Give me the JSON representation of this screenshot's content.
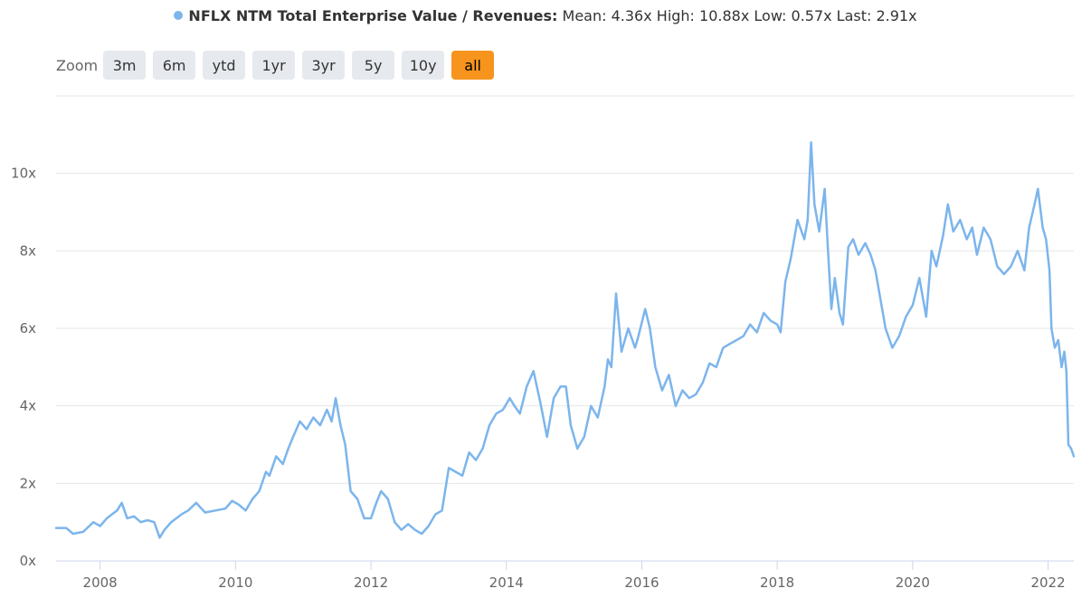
{
  "legend": {
    "series_name": "NFLX NTM Total Enterprise Value / Revenues:",
    "stats": "Mean: 4.36x High: 10.88x Low: 0.57x Last: 2.91x",
    "color": "#7cb5ec"
  },
  "zoom": {
    "label": "Zoom",
    "buttons": [
      "3m",
      "6m",
      "ytd",
      "1yr",
      "3yr",
      "5y",
      "10y",
      "all"
    ],
    "active": "all",
    "active_color": "#f7941d"
  },
  "chart_data": {
    "type": "line",
    "title": "NFLX NTM Total Enterprise Value / Revenues",
    "xlabel": "",
    "ylabel": "",
    "xlim": [
      2007.35,
      2022.38
    ],
    "ylim": [
      0,
      12
    ],
    "grid": true,
    "y_ticks": [
      0,
      2,
      4,
      6,
      8,
      10
    ],
    "y_tick_labels": [
      "0x",
      "2x",
      "4x",
      "6x",
      "8x",
      "10x"
    ],
    "x_ticks": [
      2008,
      2010,
      2012,
      2014,
      2016,
      2018,
      2020,
      2022
    ],
    "x_tick_labels": [
      "2008",
      "2010",
      "2012",
      "2014",
      "2016",
      "2018",
      "2020",
      "2022"
    ],
    "series": [
      {
        "name": "NFLX NTM Total Enterprise Value / Revenues",
        "color": "#7cb5ec",
        "x": [
          2007.35,
          2007.5,
          2007.6,
          2007.75,
          2007.9,
          2008.0,
          2008.1,
          2008.25,
          2008.32,
          2008.4,
          2008.5,
          2008.6,
          2008.7,
          2008.8,
          2008.88,
          2008.95,
          2009.05,
          2009.2,
          2009.3,
          2009.42,
          2009.55,
          2009.7,
          2009.85,
          2009.95,
          2010.05,
          2010.15,
          2010.25,
          2010.35,
          2010.45,
          2010.5,
          2010.6,
          2010.7,
          2010.78,
          2010.85,
          2010.95,
          2011.05,
          2011.15,
          2011.25,
          2011.35,
          2011.42,
          2011.48,
          2011.55,
          2011.62,
          2011.7,
          2011.8,
          2011.9,
          2012.0,
          2012.08,
          2012.15,
          2012.25,
          2012.35,
          2012.45,
          2012.55,
          2012.65,
          2012.75,
          2012.85,
          2012.95,
          2013.05,
          2013.15,
          2013.25,
          2013.35,
          2013.45,
          2013.55,
          2013.65,
          2013.75,
          2013.85,
          2013.95,
          2014.05,
          2014.12,
          2014.2,
          2014.3,
          2014.4,
          2014.5,
          2014.6,
          2014.7,
          2014.8,
          2014.88,
          2014.95,
          2015.05,
          2015.15,
          2015.25,
          2015.35,
          2015.45,
          2015.5,
          2015.55,
          2015.62,
          2015.7,
          2015.8,
          2015.9,
          2015.95,
          2016.05,
          2016.12,
          2016.2,
          2016.3,
          2016.4,
          2016.5,
          2016.6,
          2016.7,
          2016.8,
          2016.9,
          2017.0,
          2017.1,
          2017.2,
          2017.3,
          2017.4,
          2017.5,
          2017.6,
          2017.7,
          2017.8,
          2017.9,
          2018.0,
          2018.05,
          2018.12,
          2018.2,
          2018.3,
          2018.4,
          2018.45,
          2018.5,
          2018.55,
          2018.62,
          2018.7,
          2018.75,
          2018.8,
          2018.85,
          2018.92,
          2018.97,
          2019.05,
          2019.12,
          2019.2,
          2019.3,
          2019.38,
          2019.45,
          2019.52,
          2019.6,
          2019.7,
          2019.8,
          2019.9,
          2020.0,
          2020.1,
          2020.2,
          2020.28,
          2020.35,
          2020.45,
          2020.52,
          2020.6,
          2020.7,
          2020.8,
          2020.88,
          2020.95,
          2021.05,
          2021.15,
          2021.25,
          2021.35,
          2021.45,
          2021.55,
          2021.65,
          2021.72,
          2021.8,
          2021.85,
          2021.92,
          2021.97,
          2022.02,
          2022.05,
          2022.1,
          2022.15,
          2022.2,
          2022.24,
          2022.27,
          2022.3,
          2022.34,
          2022.38
        ],
        "values": [
          0.85,
          0.85,
          0.7,
          0.75,
          1.0,
          0.9,
          1.1,
          1.3,
          1.5,
          1.1,
          1.15,
          1.0,
          1.05,
          1.0,
          0.6,
          0.8,
          1.0,
          1.2,
          1.3,
          1.5,
          1.25,
          1.3,
          1.35,
          1.55,
          1.45,
          1.3,
          1.6,
          1.8,
          2.3,
          2.2,
          2.7,
          2.5,
          2.9,
          3.2,
          3.6,
          3.4,
          3.7,
          3.5,
          3.9,
          3.6,
          4.2,
          3.5,
          3.0,
          1.8,
          1.6,
          1.1,
          1.1,
          1.5,
          1.8,
          1.6,
          1.0,
          0.8,
          0.95,
          0.8,
          0.7,
          0.9,
          1.2,
          1.3,
          2.4,
          2.3,
          2.2,
          2.8,
          2.6,
          2.9,
          3.5,
          3.8,
          3.9,
          4.2,
          4.0,
          3.8,
          4.5,
          4.9,
          4.1,
          3.2,
          4.2,
          4.5,
          4.5,
          3.5,
          2.9,
          3.2,
          4.0,
          3.7,
          4.5,
          5.2,
          5.0,
          6.9,
          5.4,
          6.0,
          5.5,
          5.8,
          6.5,
          6.0,
          5.0,
          4.4,
          4.8,
          4.0,
          4.4,
          4.2,
          4.3,
          4.6,
          5.1,
          5.0,
          5.5,
          5.6,
          5.7,
          5.8,
          6.1,
          5.9,
          6.4,
          6.2,
          6.1,
          5.9,
          7.2,
          7.8,
          8.8,
          8.3,
          8.8,
          10.8,
          9.2,
          8.5,
          9.6,
          8.0,
          6.5,
          7.3,
          6.4,
          6.1,
          8.1,
          8.3,
          7.9,
          8.2,
          7.9,
          7.5,
          6.8,
          6.0,
          5.5,
          5.8,
          6.3,
          6.6,
          7.3,
          6.3,
          8.0,
          7.6,
          8.4,
          9.2,
          8.5,
          8.8,
          8.3,
          8.6,
          7.9,
          8.6,
          8.3,
          7.6,
          7.4,
          7.6,
          8.0,
          7.5,
          8.6,
          9.2,
          9.6,
          8.6,
          8.3,
          7.5,
          6.0,
          5.5,
          5.7,
          5.0,
          5.4,
          4.9,
          3.0,
          2.9,
          2.7
        ]
      }
    ]
  }
}
